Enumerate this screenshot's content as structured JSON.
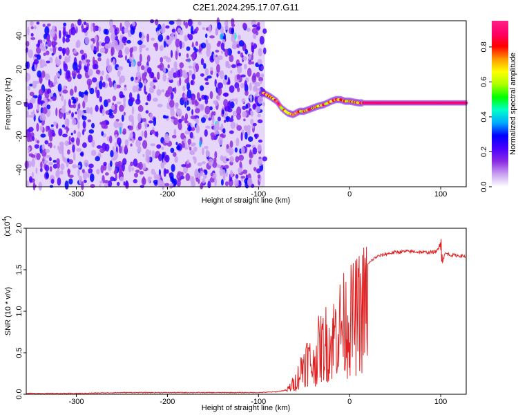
{
  "page": {
    "title": "C2E1.2024.295.17.07.G11"
  },
  "chart_data": [
    {
      "type": "heatmap",
      "title": "C2E1.2024.295.17.07.G11",
      "xlabel": "Height of straight line (km)",
      "ylabel": "Frequency (Hz)",
      "xlim": [
        -355,
        128
      ],
      "ylim": [
        -50,
        49
      ],
      "x_ticks": [
        -300,
        -200,
        -100,
        0,
        100
      ],
      "y_ticks": [
        -40,
        -20,
        0,
        20,
        40
      ],
      "colorbar": {
        "label": "Normalized spectral amplitude",
        "range": [
          0,
          0.95
        ],
        "ticks": [
          0.0,
          0.2,
          0.4,
          0.6,
          0.8
        ],
        "colors": [
          "#ffffff",
          "#c8a0f0",
          "#8a2be2",
          "#4b00ff",
          "#0000ff",
          "#00aaff",
          "#00ffcc",
          "#00ff00",
          "#aaff00",
          "#ffff00",
          "#ff9900",
          "#ff0000",
          "#ff0066",
          "#ff2288"
        ]
      },
      "noise_region_x": [
        -355,
        -93
      ],
      "signal_track": {
        "x": [
          -95,
          -88,
          -80,
          -75,
          -68,
          -62,
          -55,
          -50,
          -45,
          -40,
          -35,
          -28,
          -20,
          -15,
          -10,
          -5,
          0,
          10,
          20,
          40,
          60,
          80,
          100,
          128
        ],
        "y": [
          6,
          4,
          1,
          -3,
          -6,
          -7,
          -5,
          -5,
          -4,
          -3,
          -2,
          -1,
          1,
          2,
          2,
          1,
          1,
          0,
          0,
          0,
          0,
          0,
          0,
          0
        ]
      }
    },
    {
      "type": "line",
      "xlabel": "Height of straight line (km)",
      "ylabel": "SNR (10 * v/v)",
      "y_multiplier": "(x10",
      "y_multiplier_exponent": "4",
      "y_multiplier_close": ")",
      "xlim": [
        -355,
        128
      ],
      "ylim": [
        0.0,
        2.0
      ],
      "x_ticks": [
        -300,
        -200,
        -100,
        0,
        100
      ],
      "y_ticks": [
        0.0,
        0.5,
        1.0,
        1.5,
        2.0
      ],
      "y_tick_labels": [
        "0.0",
        "0.5",
        "1.0",
        "1.5",
        "2.0"
      ],
      "line_color": "#e02020",
      "series": [
        {
          "x": [
            -355,
            -300,
            -250,
            -200,
            -150,
            -100,
            -80,
            -70,
            -60,
            -55,
            -50,
            -45,
            -40,
            -35,
            -30,
            -25,
            -20,
            -15,
            -10,
            -5,
            0,
            5,
            10,
            15,
            20,
            25,
            30,
            40,
            50,
            60,
            70,
            80,
            90,
            95,
            98,
            100,
            102,
            105,
            110,
            120,
            128
          ],
          "y": [
            0.01,
            0.01,
            0.02,
            0.02,
            0.02,
            0.02,
            0.03,
            0.05,
            0.2,
            0.35,
            0.55,
            0.6,
            0.45,
            0.75,
            0.8,
            0.9,
            0.85,
            1.1,
            1.15,
            1.2,
            1.25,
            1.3,
            1.38,
            1.48,
            1.56,
            1.62,
            1.66,
            1.69,
            1.71,
            1.72,
            1.72,
            1.71,
            1.71,
            1.72,
            1.75,
            1.95,
            1.6,
            1.7,
            1.68,
            1.67,
            1.66
          ]
        }
      ]
    }
  ]
}
